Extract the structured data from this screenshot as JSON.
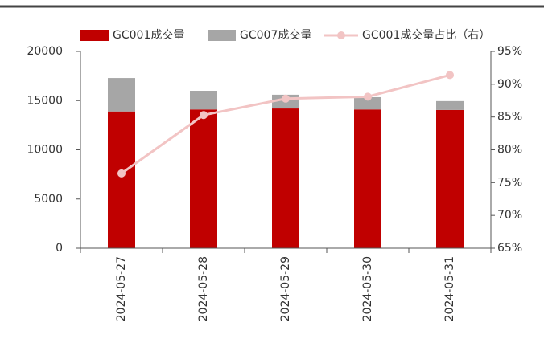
{
  "chart_data": {
    "type": "bar",
    "categories": [
      "2024-05-27",
      "2024-05-28",
      "2024-05-29",
      "2024-05-30",
      "2024-05-31"
    ],
    "series": [
      {
        "name": "GC001成交量",
        "color": "#c00000",
        "values": [
          13900,
          14100,
          14200,
          14100,
          14050
        ]
      },
      {
        "name": "GC007成交量",
        "color": "#a6a6a6",
        "values": [
          3400,
          1900,
          1400,
          1250,
          900
        ]
      },
      {
        "name": "GC001成交量占比（右）",
        "color": "#f2c4c4",
        "type": "line",
        "axis": "y2",
        "values": [
          76.4,
          85.3,
          87.8,
          88.1,
          91.4
        ]
      }
    ],
    "stacked": true,
    "ylim": [
      0,
      20000
    ],
    "yticks": [
      0,
      5000,
      10000,
      15000,
      20000
    ],
    "y2lim": [
      65,
      95
    ],
    "y2ticks": [
      {
        "value": 65,
        "label": "65%"
      },
      {
        "value": 70,
        "label": "70%"
      },
      {
        "value": 75,
        "label": "75%"
      },
      {
        "value": 80,
        "label": "80%"
      },
      {
        "value": 85,
        "label": "85%"
      },
      {
        "value": 90,
        "label": "90%"
      },
      {
        "value": 95,
        "label": "95%"
      }
    ],
    "legend": "top"
  }
}
